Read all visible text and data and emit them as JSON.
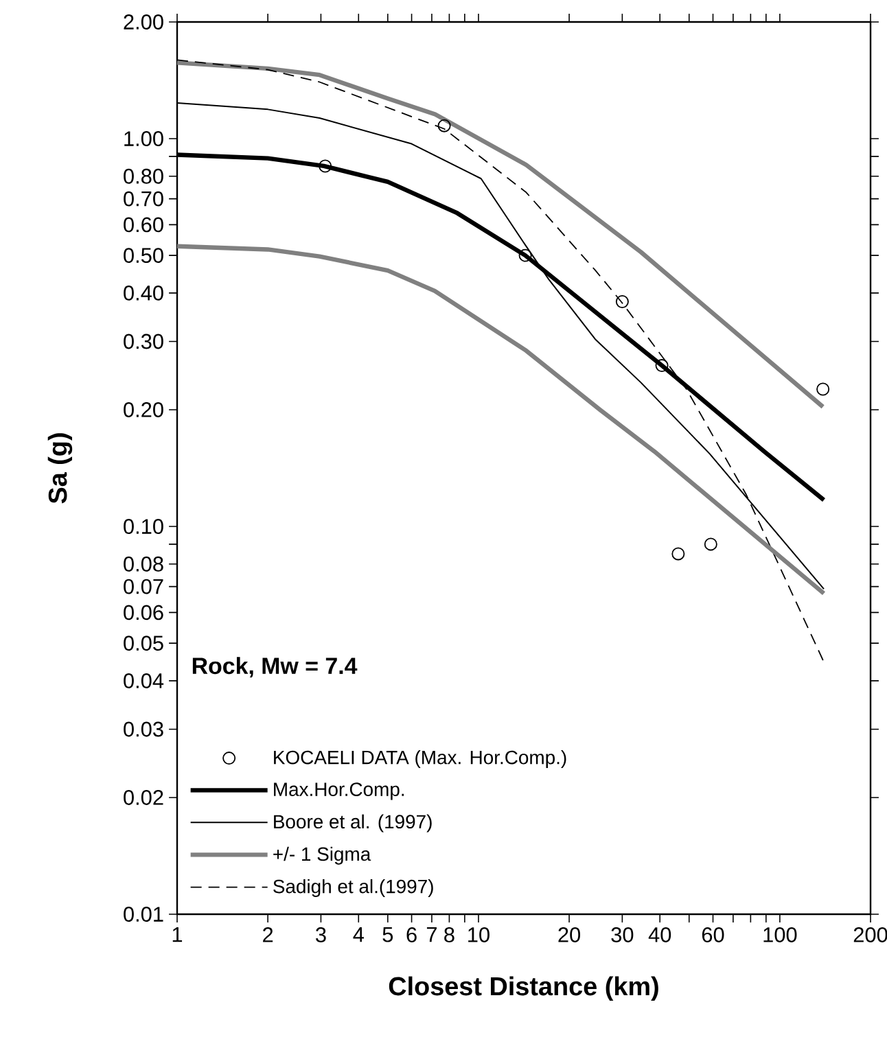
{
  "chart_data": {
    "type": "line",
    "xlabel": "Closest Distance (km)",
    "ylabel": "Sa (g)",
    "legend_title": "Rock, Mw = 7.4",
    "log": "xy",
    "legend": "bottom left",
    "grid": false,
    "xlim": [
      1,
      200
    ],
    "ylim": [
      0.01,
      2
    ],
    "xticks": [
      1,
      2,
      3,
      4,
      5,
      6,
      7,
      8,
      {
        "value": 9,
        "label": null
      },
      10,
      20,
      30,
      40,
      {
        "value": 50,
        "label": null
      },
      60,
      {
        "value": 70,
        "label": null
      },
      {
        "value": 80,
        "label": null
      },
      {
        "value": 90,
        "label": null
      },
      100,
      200
    ],
    "yticks": [
      {
        "value": 0.01,
        "label": "0.01"
      },
      {
        "value": 0.02,
        "label": "0.02"
      },
      {
        "value": 0.03,
        "label": "0.03"
      },
      {
        "value": 0.04,
        "label": "0.04"
      },
      {
        "value": 0.05,
        "label": "0.05"
      },
      {
        "value": 0.06,
        "label": "0.06"
      },
      {
        "value": 0.07,
        "label": "0.07"
      },
      {
        "value": 0.08,
        "label": "0.08"
      },
      {
        "value": 0.09,
        "label": null
      },
      {
        "value": 0.1,
        "label": "0.10"
      },
      {
        "value": 0.2,
        "label": "0.20"
      },
      {
        "value": 0.3,
        "label": "0.30"
      },
      {
        "value": 0.4,
        "label": "0.40"
      },
      {
        "value": 0.5,
        "label": "0.50"
      },
      {
        "value": 0.6,
        "label": "0.60"
      },
      {
        "value": 0.7,
        "label": "0.70"
      },
      {
        "value": 0.8,
        "label": "0.80"
      },
      {
        "value": 0.9,
        "label": null
      },
      {
        "value": 1,
        "label": "1.00"
      },
      {
        "value": 2,
        "label": "2.00"
      }
    ],
    "series": [
      {
        "name": "KOCAELI DATA (Max. Hor.Comp.)",
        "type": "scatter",
        "marker": "circle",
        "color": "#000000",
        "x": [
          3.1,
          7.7,
          14.3,
          30,
          40.6,
          46,
          59,
          139
        ],
        "values": [
          0.85,
          1.08,
          0.5,
          0.38,
          0.26,
          0.085,
          0.09,
          0.226
        ]
      },
      {
        "name": "Max.Hor.Comp.",
        "line_style": "solid",
        "color": "#000000",
        "x": [
          1,
          2,
          3.07,
          5,
          8.5,
          14.3,
          40.6,
          88.8,
          140
        ],
        "values": [
          0.909,
          0.89,
          0.85,
          0.774,
          0.643,
          0.5,
          0.26,
          0.156,
          0.117
        ]
      },
      {
        "name": "Boore et al. (1997)",
        "line_style": "solid",
        "color": "#000000",
        "x": [
          1,
          2,
          2.97,
          6,
          10.2,
          14.3,
          17.1,
          24.4,
          34.6,
          58.5,
          140
        ],
        "values": [
          1.236,
          1.19,
          1.13,
          0.97,
          0.789,
          0.532,
          0.434,
          0.304,
          0.235,
          0.154,
          0.069
        ]
      },
      {
        "name": "+/- 1 Sigma",
        "line_style": "solid",
        "color": "#808080",
        "x": [
          1,
          2,
          2.97,
          5,
          7.18,
          14.4,
          34.6,
          139
        ],
        "values": [
          1.57,
          1.517,
          1.46,
          1.27,
          1.156,
          0.856,
          0.51,
          0.2035
        ]
      },
      {
        "name": "Sadigh et al.(1997)",
        "line_style": "dashed",
        "color": "#000000",
        "x": [
          1,
          2,
          2.97,
          7.7,
          14.4,
          24.4,
          30,
          49,
          77.3,
          140
        ],
        "values": [
          1.596,
          1.506,
          1.4,
          1.06,
          0.727,
          0.458,
          0.377,
          0.226,
          0.121,
          0.0447
        ]
      },
      {
        "line_style": "solid",
        "color": "#808080",
        "x": [
          1,
          2,
          2.97,
          5,
          7.16,
          14.4,
          25.3,
          38.4,
          140
        ],
        "values": [
          0.528,
          0.518,
          0.497,
          0.457,
          0.405,
          0.284,
          0.2,
          0.156,
          0.0672
        ]
      }
    ]
  }
}
